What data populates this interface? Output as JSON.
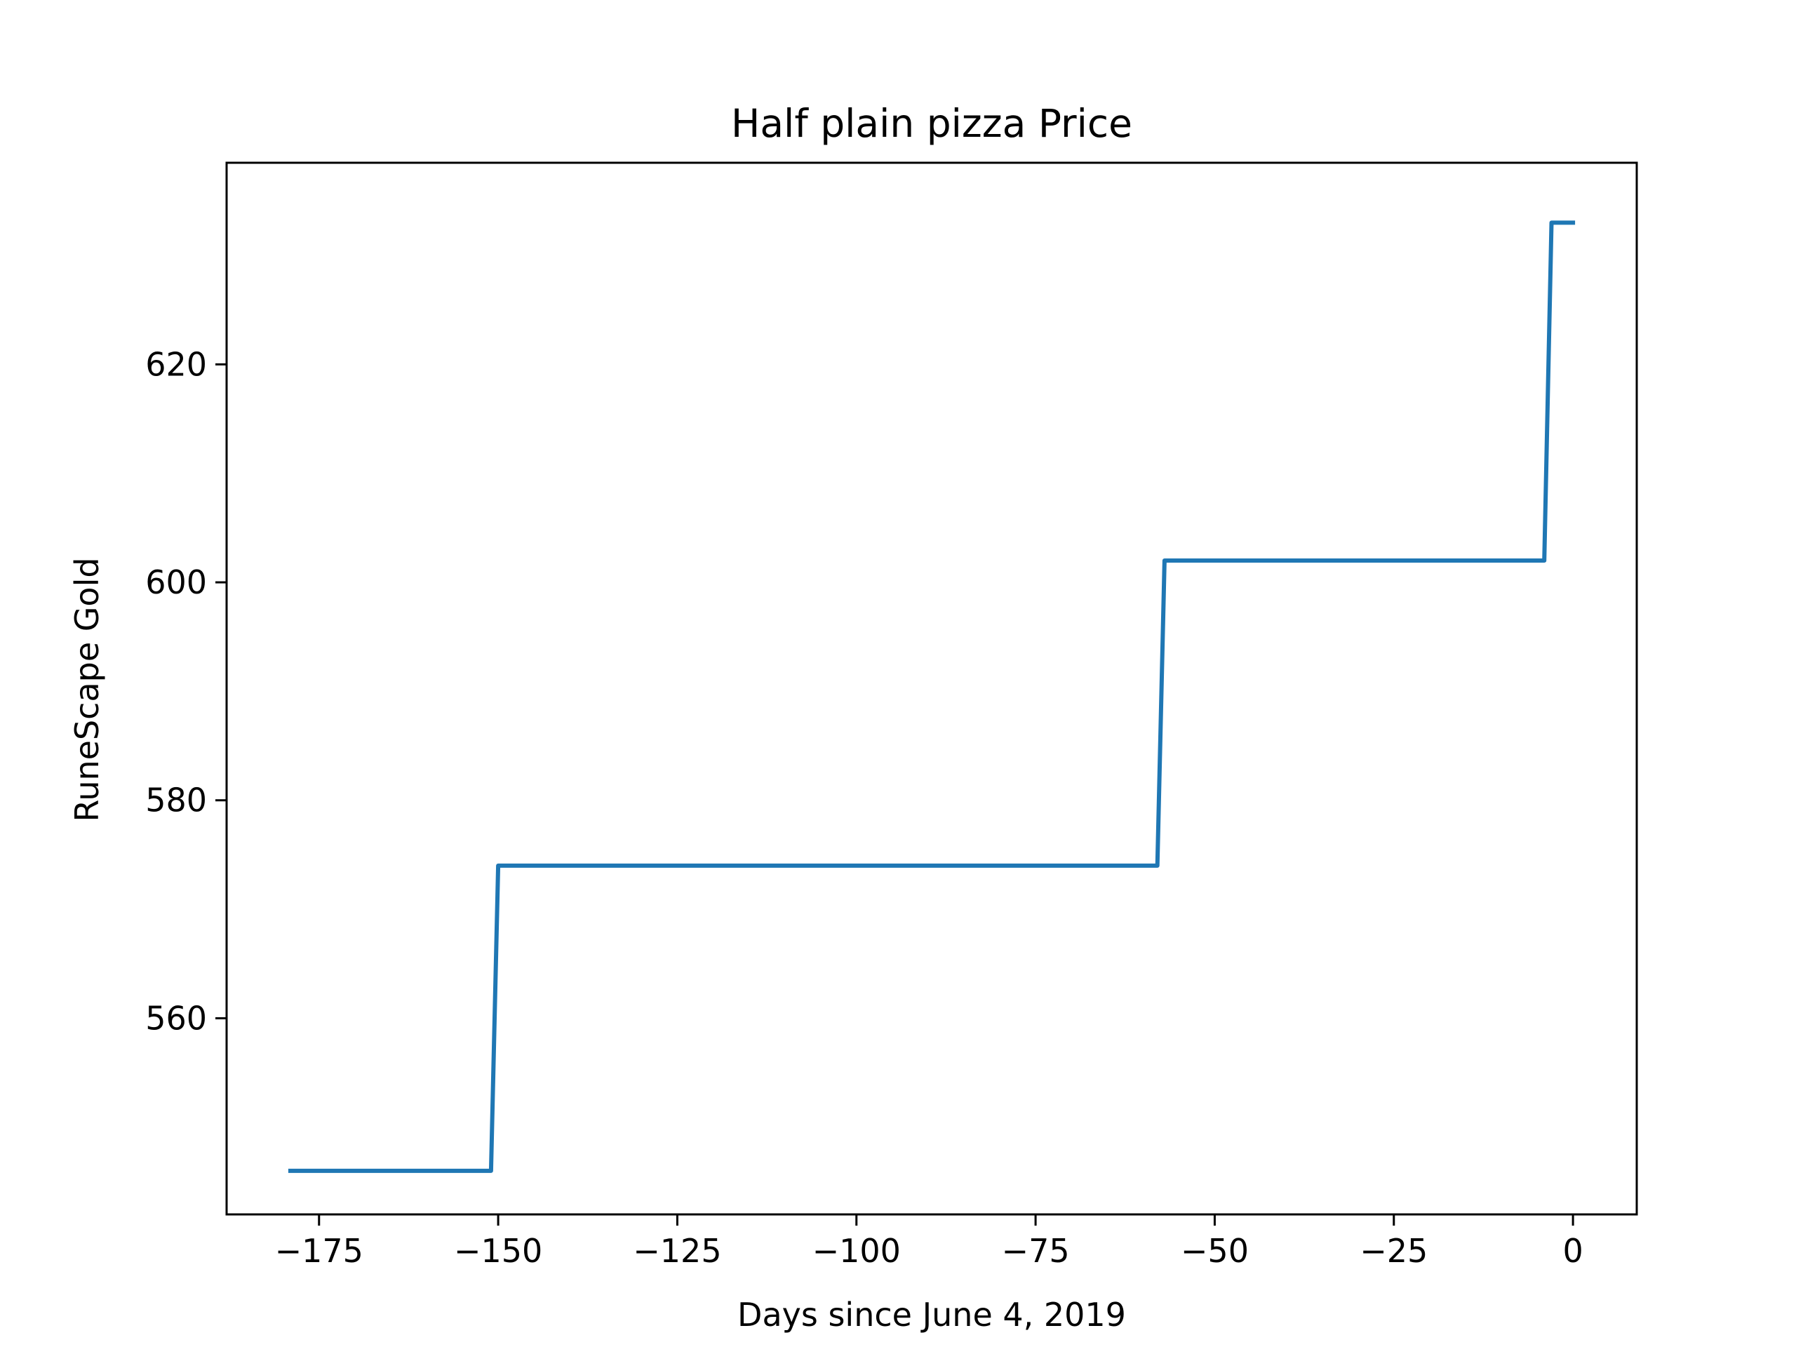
{
  "chart_data": {
    "type": "line",
    "title": "Half plain pizza Price",
    "xlabel": "Days since June 4, 2019",
    "ylabel": "RuneScape Gold",
    "xlim": [
      -187.9,
      8.9
    ],
    "ylim": [
      542,
      638.5
    ],
    "xticks": [
      -175,
      -150,
      -125,
      -100,
      -75,
      -50,
      -25,
      0
    ],
    "xtick_labels": [
      "−175",
      "−150",
      "−125",
      "−100",
      "−75",
      "−50",
      "−25",
      "0"
    ],
    "yticks": [
      560,
      580,
      600,
      620
    ],
    "ytick_labels": [
      "560",
      "580",
      "600",
      "620"
    ],
    "grid": false,
    "legend": "none",
    "series": [
      {
        "color": "#1f77b4",
        "x": [
          -179,
          -151,
          -150,
          -58,
          -57,
          -4,
          -3,
          0
        ],
        "y": [
          546,
          546,
          574,
          574,
          602,
          602,
          633,
          633
        ]
      }
    ]
  }
}
